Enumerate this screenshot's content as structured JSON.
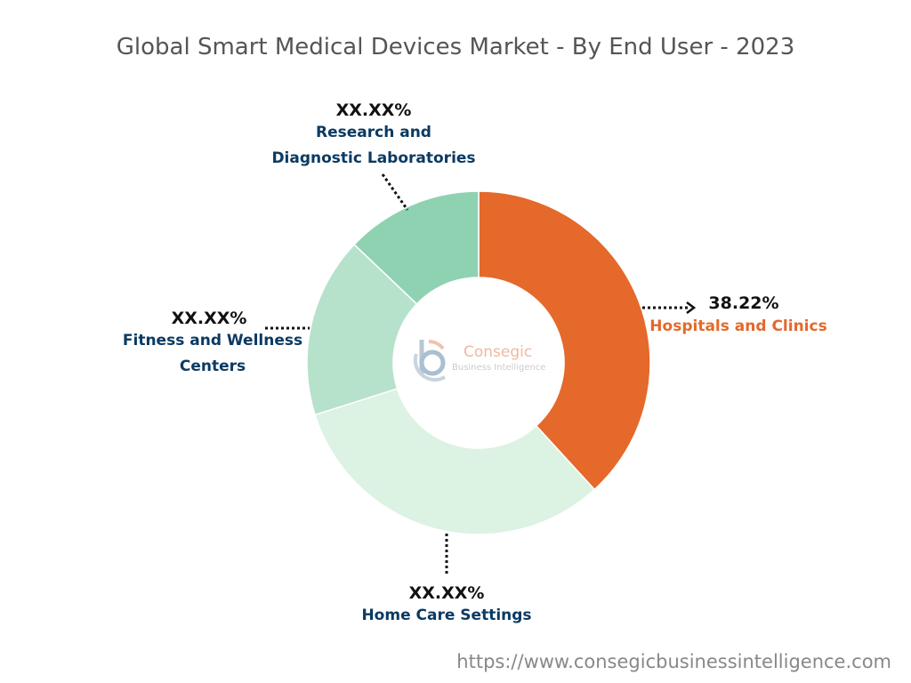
{
  "chart_data": {
    "type": "pie",
    "variant": "donut",
    "title": "Global Smart Medical Devices Market - By End User - 2023",
    "slices": [
      {
        "name": "Hospitals and Clinics",
        "value": 38.22,
        "value_label": "38.22%",
        "color": "#e4692a"
      },
      {
        "name": "Home Care Settings",
        "value": 31.9,
        "value_label": "XX.XX%",
        "color": "#dcf2e2"
      },
      {
        "name": "Fitness and Wellness Centers",
        "value": 17.0,
        "value_label": "XX.XX%",
        "color": "#b6e2cb"
      },
      {
        "name": "Research and Diagnostic Laboratories",
        "value": 12.9,
        "value_label": "XX.XX%",
        "color": "#8fd2b2"
      }
    ],
    "legend": "none"
  },
  "labels": {
    "hospitals": {
      "value": "38.22%",
      "name": "Hospitals and Clinics"
    },
    "home_care": {
      "value": "XX.XX%",
      "name": "Home Care Settings"
    },
    "fitness": {
      "value": "XX.XX%",
      "name_line1": "Fitness and Wellness",
      "name_line2": "Centers"
    },
    "research": {
      "value": "XX.XX%",
      "name_line1": "Research and",
      "name_line2": "Diagnostic Laboratories"
    }
  },
  "logo": {
    "name": "Consegic",
    "subtitle": "Business Intelligence"
  },
  "footer_url": "https://www.consegicbusinessintelligence.com"
}
